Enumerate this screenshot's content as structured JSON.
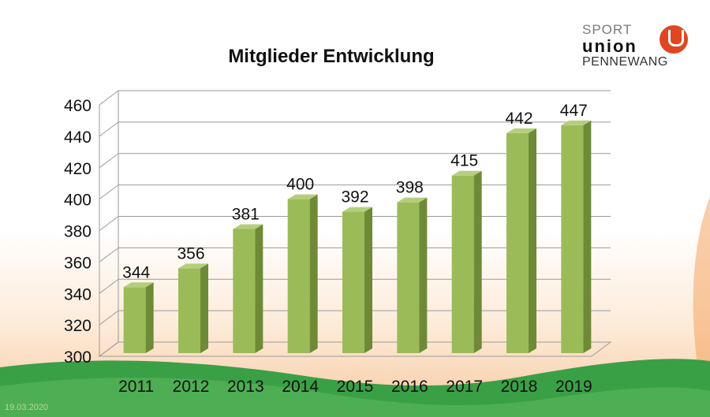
{
  "logo": {
    "line1": "SPORT",
    "line2": "union",
    "line3": "PENNEWANG"
  },
  "footer_date": "19.03.2020",
  "colors": {
    "bar_front": "#9bbb59",
    "bar_side": "#6e8a37",
    "bar_top": "#b4cf7c",
    "grid": "#9a9a9a",
    "green_wave": "#3aa046",
    "orange_swoosh": "#f39a52",
    "logo_u": "#e0461f"
  },
  "chart_data": {
    "type": "bar",
    "title": "Mitglieder Entwicklung",
    "categories": [
      "2011",
      "2012",
      "2013",
      "2014",
      "2015",
      "2016",
      "2017",
      "2018",
      "2019"
    ],
    "values": [
      344,
      356,
      381,
      400,
      392,
      398,
      415,
      442,
      447
    ],
    "data_labels": [
      "344",
      "356",
      "381",
      "400",
      "392",
      "398",
      "415",
      "442",
      "447"
    ],
    "ylim": [
      300,
      460
    ],
    "yticks": [
      "300",
      "320",
      "340",
      "360",
      "380",
      "400",
      "420",
      "440",
      "460"
    ],
    "grid": true,
    "legend": "none",
    "style": "3d-column"
  }
}
